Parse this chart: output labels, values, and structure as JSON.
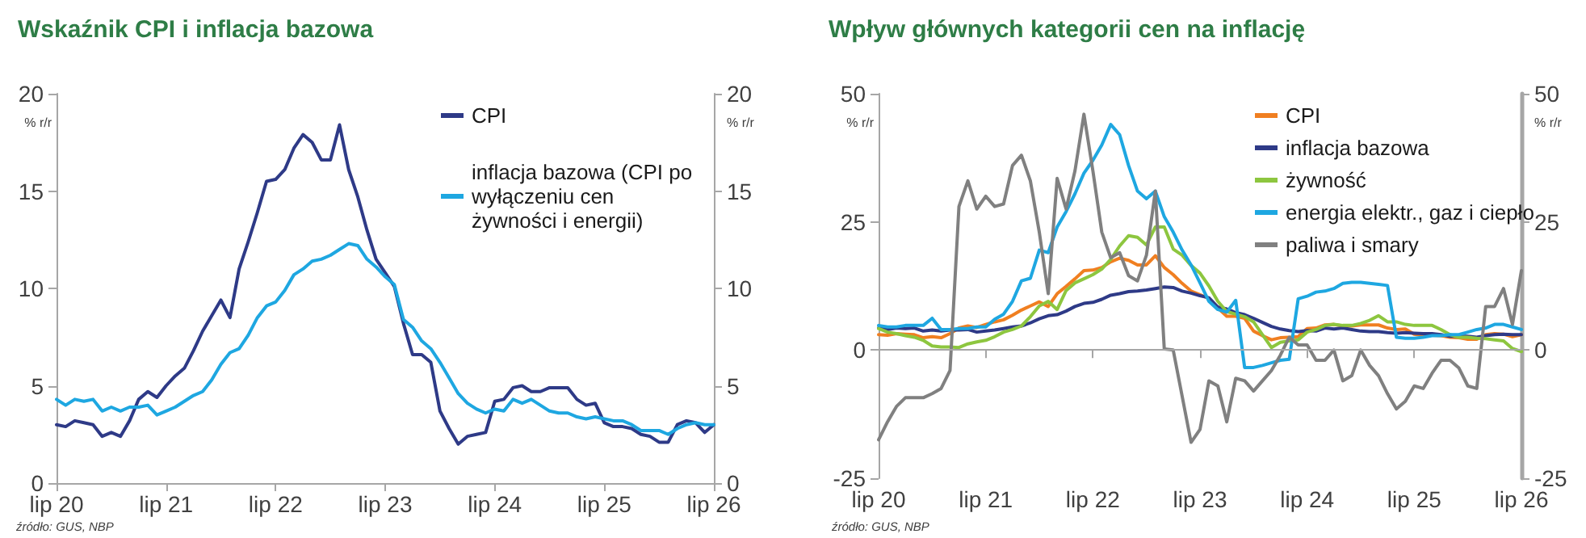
{
  "chart_data": [
    {
      "type": "line",
      "title": "Wskaźnik CPI i inflacja bazowa",
      "ylabel": "% r/r",
      "y2label": "% r/r",
      "annotations": [
        "źródło: GUS, NBP"
      ],
      "categories": [
        "lip 20",
        null,
        null,
        null,
        null,
        null,
        null,
        null,
        null,
        null,
        null,
        null,
        "lip 21",
        null,
        null,
        null,
        null,
        null,
        null,
        null,
        null,
        null,
        null,
        null,
        "lip 22",
        null,
        null,
        null,
        null,
        null,
        null,
        null,
        null,
        null,
        null,
        null,
        "lip 23",
        null,
        null,
        null,
        null,
        null,
        null,
        null,
        null,
        null,
        null,
        null,
        "lip 24",
        null,
        null,
        null,
        null,
        null,
        null,
        null,
        null,
        null,
        null,
        null,
        "lip 25",
        null,
        null,
        null,
        null,
        null,
        null,
        null,
        null,
        null,
        null,
        null,
        "lip 26"
      ],
      "series": [
        {
          "name": "CPI",
          "color": "#2e3a87",
          "values": [
            3.0,
            2.9,
            3.2,
            3.1,
            3.0,
            2.4,
            2.6,
            2.4,
            3.2,
            4.3,
            4.7,
            4.4,
            5.0,
            5.5,
            5.9,
            6.8,
            7.8,
            8.6,
            9.4,
            8.5,
            11.0,
            12.4,
            13.9,
            15.5,
            15.6,
            16.1,
            17.2,
            17.9,
            17.5,
            16.6,
            16.6,
            18.4,
            16.1,
            14.7,
            13.0,
            11.5,
            10.8,
            10.1,
            8.2,
            6.6,
            6.6,
            6.2,
            3.7,
            2.8,
            2.0,
            2.4,
            2.5,
            2.6,
            4.2,
            4.3,
            4.9,
            5.0,
            4.7,
            4.7,
            4.9,
            4.9,
            4.9,
            4.3,
            4.0,
            4.1,
            3.1,
            2.9,
            2.9,
            2.8,
            2.5,
            2.4,
            2.1,
            2.1,
            3.0,
            3.2,
            3.1,
            2.6,
            3.0
          ]
        },
        {
          "name": "inflacja bazowa (CPI po wyłączeniu cen żywności i energii)",
          "color": "#1ea7e1",
          "values": [
            4.3,
            4.0,
            4.3,
            4.2,
            4.3,
            3.7,
            3.9,
            3.7,
            3.9,
            3.9,
            4.0,
            3.5,
            3.7,
            3.9,
            4.2,
            4.5,
            4.7,
            5.3,
            6.1,
            6.7,
            6.9,
            7.6,
            8.5,
            9.1,
            9.3,
            9.9,
            10.7,
            11.0,
            11.4,
            11.5,
            11.7,
            12.0,
            12.3,
            12.2,
            11.5,
            11.1,
            10.6,
            10.2,
            8.4,
            8.0,
            7.3,
            6.9,
            6.2,
            5.4,
            4.6,
            4.1,
            3.8,
            3.6,
            3.8,
            3.7,
            4.3,
            4.1,
            4.3,
            4.0,
            3.7,
            3.6,
            3.6,
            3.4,
            3.3,
            3.4,
            3.3,
            3.2,
            3.2,
            3.0,
            2.7,
            2.7,
            2.7,
            2.5,
            2.8,
            3.0,
            3.1,
            3.0,
            3.0
          ]
        }
      ],
      "ylim": [
        0,
        20
      ],
      "yticks": [
        0,
        5,
        10,
        15,
        20
      ],
      "y2lim": [
        0,
        20
      ],
      "y2ticks": [
        0,
        5,
        10,
        15,
        20
      ],
      "grid": false,
      "legend": "top right",
      "marker": "none",
      "line_style": "solid"
    },
    {
      "type": "line",
      "title": "Wpływ głównych kategorii cen na inflację",
      "ylabel": "% r/r",
      "y2label": "% r/r",
      "annotations": [
        "źródło: GUS, NBP"
      ],
      "categories": [
        "lip 20",
        null,
        null,
        null,
        null,
        null,
        null,
        null,
        null,
        null,
        null,
        null,
        "lip 21",
        null,
        null,
        null,
        null,
        null,
        null,
        null,
        null,
        null,
        null,
        null,
        "lip 22",
        null,
        null,
        null,
        null,
        null,
        null,
        null,
        null,
        null,
        null,
        null,
        "lip 23",
        null,
        null,
        null,
        null,
        null,
        null,
        null,
        null,
        null,
        null,
        null,
        "lip 24",
        null,
        null,
        null,
        null,
        null,
        null,
        null,
        null,
        null,
        null,
        null,
        "lip 25",
        null,
        null,
        null,
        null,
        null,
        null,
        null,
        null,
        null,
        null,
        null,
        "lip 26"
      ],
      "series": [
        {
          "name": "CPI",
          "color": "#f07f21",
          "values": [
            3.0,
            2.9,
            3.2,
            3.1,
            3.0,
            2.4,
            2.6,
            2.4,
            3.2,
            4.3,
            4.7,
            4.4,
            5.0,
            5.5,
            5.9,
            6.8,
            7.8,
            8.6,
            9.4,
            8.5,
            11.0,
            12.4,
            13.9,
            15.5,
            15.6,
            16.1,
            17.2,
            17.9,
            17.5,
            16.6,
            16.6,
            18.4,
            16.1,
            14.7,
            13.0,
            11.5,
            10.8,
            10.1,
            8.2,
            6.6,
            6.6,
            6.2,
            3.7,
            2.8,
            2.0,
            2.4,
            2.5,
            2.6,
            4.2,
            4.3,
            4.9,
            5.0,
            4.7,
            4.7,
            4.9,
            4.9,
            4.9,
            4.3,
            4.0,
            4.1,
            3.1,
            2.9,
            2.9,
            2.8,
            2.5,
            2.4,
            2.1,
            2.1,
            3.0,
            3.2,
            3.1,
            2.6,
            3.0
          ]
        },
        {
          "name": "inflacja bazowa",
          "color": "#2e3a87",
          "values": [
            4.3,
            4.0,
            4.3,
            4.2,
            4.3,
            3.7,
            3.9,
            3.7,
            3.9,
            3.9,
            4.0,
            3.5,
            3.7,
            3.9,
            4.2,
            4.5,
            4.7,
            5.3,
            6.1,
            6.7,
            6.9,
            7.6,
            8.5,
            9.1,
            9.3,
            9.9,
            10.7,
            11.0,
            11.4,
            11.5,
            11.7,
            12.0,
            12.3,
            12.2,
            11.5,
            11.1,
            10.6,
            10.2,
            8.4,
            8.0,
            7.3,
            6.9,
            6.2,
            5.4,
            4.6,
            4.1,
            3.8,
            3.6,
            3.8,
            3.7,
            4.3,
            4.1,
            4.3,
            4.0,
            3.7,
            3.6,
            3.6,
            3.4,
            3.3,
            3.4,
            3.3,
            3.2,
            3.2,
            3.0,
            2.7,
            2.7,
            2.7,
            2.5,
            2.8,
            3.0,
            3.1,
            3.0,
            3.0
          ]
        },
        {
          "name": "żywność",
          "color": "#8dc63f",
          "values": [
            4.2,
            3.5,
            3.2,
            2.8,
            2.5,
            1.9,
            0.8,
            0.6,
            0.6,
            0.5,
            1.2,
            1.6,
            1.9,
            2.6,
            3.5,
            4.0,
            4.7,
            6.5,
            8.6,
            9.5,
            7.9,
            11.6,
            13.1,
            13.9,
            14.7,
            15.8,
            17.7,
            20.3,
            22.3,
            22.0,
            20.5,
            24.0,
            24.0,
            19.7,
            18.5,
            16.5,
            15.0,
            12.5,
            9.5,
            7.5,
            7.0,
            6.5,
            5.5,
            3.0,
            0.5,
            1.5,
            1.8,
            2.0,
            3.5,
            4.0,
            4.8,
            5.0,
            4.8,
            4.8,
            5.2,
            5.8,
            6.7,
            5.5,
            5.5,
            5.0,
            4.8,
            4.8,
            4.8,
            4.0,
            3.0,
            2.5,
            2.5,
            2.3,
            2.2,
            2.0,
            1.8,
            0.3,
            -0.3
          ]
        },
        {
          "name": "energia elektr., gaz i ciepło",
          "color": "#1ea7e1",
          "values": [
            4.8,
            4.5,
            4.5,
            4.8,
            4.8,
            4.8,
            6.2,
            4.0,
            4.0,
            4.2,
            4.2,
            4.5,
            4.5,
            6.0,
            7.0,
            9.5,
            13.5,
            14.0,
            19.5,
            19.0,
            24.0,
            27.0,
            30.5,
            34.5,
            37.0,
            40.0,
            44.0,
            42.0,
            36.0,
            31.0,
            29.5,
            31.0,
            26.0,
            23.0,
            19.5,
            16.6,
            13.1,
            9.5,
            7.9,
            7.4,
            9.7,
            -3.4,
            -3.4,
            -3.0,
            -2.5,
            -2.0,
            -1.8,
            10.0,
            10.5,
            11.3,
            11.5,
            12.0,
            13.0,
            13.2,
            13.2,
            13.0,
            12.8,
            12.6,
            2.5,
            2.3,
            2.3,
            2.5,
            2.8,
            2.8,
            3.0,
            3.0,
            3.5,
            4.0,
            4.3,
            5.0,
            5.0,
            4.5,
            4.0
          ]
        },
        {
          "name": "paliwa i smary",
          "color": "#808080",
          "axis": "y2",
          "values": [
            -17.5,
            -14,
            -11,
            -9.3,
            -9.3,
            -9.3,
            -8.5,
            -7.5,
            -4,
            28,
            33,
            27.5,
            30,
            28,
            28.5,
            36,
            38,
            33,
            23,
            11,
            33.5,
            27.5,
            35,
            46,
            35,
            23,
            18,
            19,
            14.5,
            13.5,
            18.5,
            31,
            0.2,
            0,
            -9,
            -18,
            -15.5,
            -6,
            -7,
            -14,
            -5.5,
            -6,
            -8,
            -6,
            -4,
            -1,
            2.5,
            1,
            1,
            -2,
            -2,
            0,
            -6,
            -5,
            0,
            -3,
            -5,
            -8.5,
            -11.5,
            -10,
            -7,
            -7.5,
            -4.5,
            -2,
            -2,
            -3.5,
            -7,
            -7.5,
            8.5,
            8.5,
            12,
            5,
            15.5
          ]
        }
      ],
      "ref_lines": [
        {
          "axis": "y",
          "value": 0,
          "color": "#a6a6a6"
        }
      ],
      "ylim": [
        -25,
        50
      ],
      "yticks": [
        -25,
        0,
        25,
        50
      ],
      "y2lim": [
        -25,
        50
      ],
      "y2ticks": [
        -25,
        0,
        25,
        50
      ],
      "grid": false,
      "legend": "top right",
      "marker": "none",
      "line_style": "solid"
    }
  ]
}
